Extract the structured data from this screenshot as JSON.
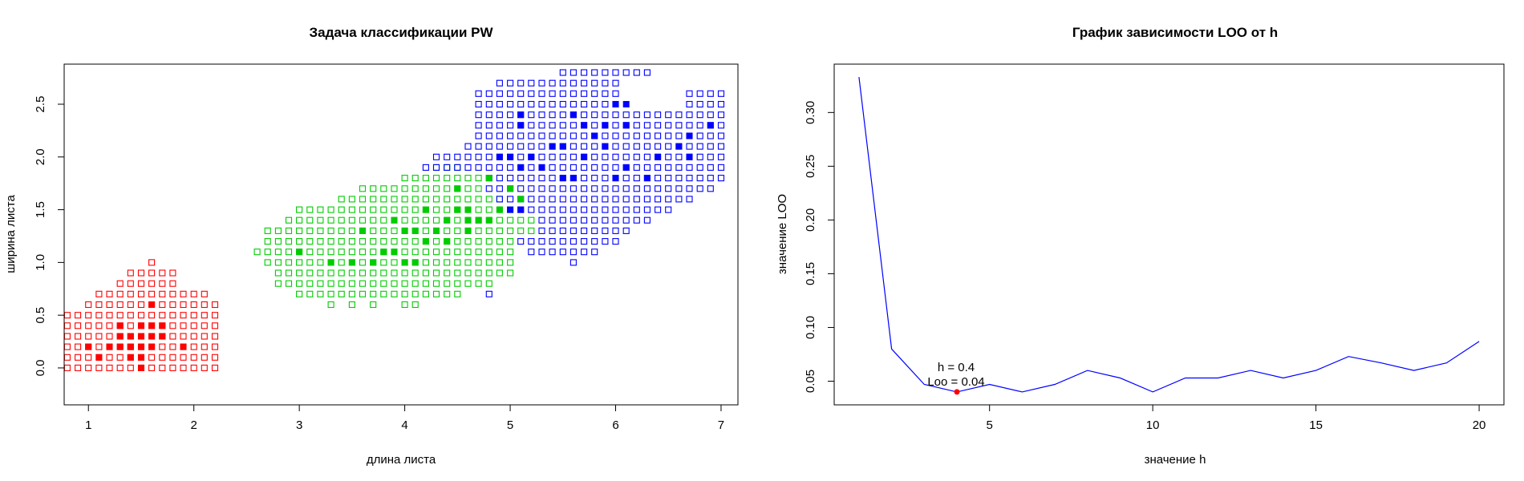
{
  "chart_data": [
    {
      "type": "scatter",
      "title": "Задача классификации PW",
      "xlabel": "длина листа",
      "ylabel": "ширина листа",
      "xlim": [
        0.77,
        7.16
      ],
      "ylim": [
        -0.35,
        2.88
      ],
      "x_ticks": [
        "1",
        "2",
        "3",
        "4",
        "5",
        "6",
        "7"
      ],
      "y_ticks": [
        "0.0",
        "0.5",
        "1.0",
        "1.5",
        "2.0",
        "2.5"
      ],
      "grid": false,
      "legend": "none",
      "marker": "open-square",
      "classes": [
        {
          "color": "#ff0000"
        },
        {
          "color": "#00cc00"
        },
        {
          "color": "#0000ff"
        }
      ],
      "grid_step": 0.1,
      "classified_regions": [
        {
          "class": 0,
          "rows": [
            {
              "y": 0.0,
              "x": [
                0.8,
                2.2
              ]
            },
            {
              "y": 0.1,
              "x": [
                0.8,
                2.2
              ]
            },
            {
              "y": 0.2,
              "x": [
                0.8,
                2.2
              ]
            },
            {
              "y": 0.3,
              "x": [
                0.8,
                2.2
              ]
            },
            {
              "y": 0.4,
              "x": [
                0.8,
                2.2
              ]
            },
            {
              "y": 0.5,
              "x": [
                0.8,
                2.2
              ]
            },
            {
              "y": 0.6,
              "x": [
                1.0,
                2.2
              ]
            },
            {
              "y": 0.7,
              "x": [
                1.1,
                2.1
              ]
            },
            {
              "y": 0.8,
              "x": [
                1.3,
                1.8
              ]
            },
            {
              "y": 0.9,
              "x": [
                1.4,
                1.8
              ]
            },
            {
              "y": 1.0,
              "x": [
                1.6,
                1.6
              ]
            }
          ]
        },
        {
          "class": 1,
          "rows": [
            {
              "y": 0.6,
              "x": [
                3.3,
                3.3
              ]
            },
            {
              "y": 0.6,
              "x": [
                3.5,
                3.5
              ]
            },
            {
              "y": 0.6,
              "x": [
                3.7,
                3.7
              ]
            },
            {
              "y": 0.6,
              "x": [
                4.0,
                4.1
              ]
            },
            {
              "y": 0.7,
              "x": [
                3.0,
                4.5
              ]
            },
            {
              "y": 0.8,
              "x": [
                2.8,
                4.8
              ]
            },
            {
              "y": 0.9,
              "x": [
                2.8,
                5.0
              ]
            },
            {
              "y": 1.0,
              "x": [
                2.7,
                5.0
              ]
            },
            {
              "y": 1.1,
              "x": [
                2.6,
                5.0
              ]
            },
            {
              "y": 1.2,
              "x": [
                2.7,
                5.0
              ]
            },
            {
              "y": 1.3,
              "x": [
                2.7,
                5.2
              ]
            },
            {
              "y": 1.4,
              "x": [
                2.9,
                5.2
              ]
            },
            {
              "y": 1.5,
              "x": [
                3.0,
                5.0
              ]
            },
            {
              "y": 1.6,
              "x": [
                3.4,
                4.9
              ]
            },
            {
              "y": 1.7,
              "x": [
                3.6,
                4.7
              ]
            },
            {
              "y": 1.8,
              "x": [
                4.0,
                4.7
              ]
            },
            {
              "y": 1.9,
              "x": [
                4.3,
                4.5
              ]
            }
          ]
        },
        {
          "class": 2,
          "rows": [
            {
              "y": 0.7,
              "x": [
                4.8,
                4.8
              ]
            },
            {
              "y": 1.0,
              "x": [
                5.6,
                5.6
              ]
            },
            {
              "y": 1.1,
              "x": [
                5.2,
                5.8
              ]
            },
            {
              "y": 1.2,
              "x": [
                5.1,
                6.0
              ]
            },
            {
              "y": 1.3,
              "x": [
                5.3,
                6.1
              ]
            },
            {
              "y": 1.4,
              "x": [
                5.3,
                6.3
              ]
            },
            {
              "y": 1.5,
              "x": [
                5.1,
                6.5
              ]
            },
            {
              "y": 1.6,
              "x": [
                4.9,
                6.7
              ]
            },
            {
              "y": 1.7,
              "x": [
                4.8,
                6.9
              ]
            },
            {
              "y": 1.8,
              "x": [
                4.8,
                7.0
              ]
            },
            {
              "y": 1.9,
              "x": [
                4.2,
                7.0
              ]
            },
            {
              "y": 2.0,
              "x": [
                4.3,
                7.0
              ]
            },
            {
              "y": 2.1,
              "x": [
                4.6,
                7.0
              ]
            },
            {
              "y": 2.2,
              "x": [
                4.7,
                7.0
              ]
            },
            {
              "y": 2.3,
              "x": [
                4.7,
                7.0
              ]
            },
            {
              "y": 2.4,
              "x": [
                4.7,
                7.0
              ]
            },
            {
              "y": 2.5,
              "x": [
                4.7,
                6.0
              ]
            },
            {
              "y": 2.5,
              "x": [
                6.7,
                7.0
              ]
            },
            {
              "y": 2.6,
              "x": [
                4.7,
                6.0
              ]
            },
            {
              "y": 2.6,
              "x": [
                6.7,
                7.0
              ]
            },
            {
              "y": 2.7,
              "x": [
                4.9,
                6.0
              ]
            },
            {
              "y": 2.8,
              "x": [
                5.5,
                6.3
              ]
            }
          ]
        }
      ],
      "training_points": [
        {
          "class": 0,
          "points": [
            [
              1.4,
              0.2
            ],
            [
              1.3,
              0.2
            ],
            [
              1.5,
              0.2
            ],
            [
              1.4,
              0.2
            ],
            [
              1.7,
              0.4
            ],
            [
              1.4,
              0.3
            ],
            [
              1.5,
              0.2
            ],
            [
              1.5,
              0.1
            ],
            [
              1.6,
              0.2
            ],
            [
              1.1,
              0.1
            ],
            [
              1.2,
              0.2
            ],
            [
              1.3,
              0.4
            ],
            [
              1.7,
              0.3
            ],
            [
              1.5,
              0.3
            ],
            [
              1.0,
              0.2
            ],
            [
              1.9,
              0.2
            ],
            [
              1.6,
              0.4
            ],
            [
              1.3,
              0.3
            ],
            [
              1.5,
              0.4
            ],
            [
              1.6,
              0.6
            ],
            [
              1.4,
              0.1
            ],
            [
              1.6,
              0.3
            ],
            [
              1.5,
              0.0
            ]
          ]
        },
        {
          "class": 1,
          "points": [
            [
              4.7,
              1.4
            ],
            [
              4.5,
              1.5
            ],
            [
              4.9,
              1.5
            ],
            [
              4.0,
              1.3
            ],
            [
              4.6,
              1.5
            ],
            [
              3.3,
              1.0
            ],
            [
              4.6,
              1.3
            ],
            [
              3.9,
              1.4
            ],
            [
              3.5,
              1.0
            ],
            [
              4.2,
              1.5
            ],
            [
              4.0,
              1.0
            ],
            [
              4.7,
              1.4
            ],
            [
              3.6,
              1.3
            ],
            [
              4.4,
              1.4
            ],
            [
              4.1,
              1.0
            ],
            [
              3.9,
              1.1
            ],
            [
              4.8,
              1.8
            ],
            [
              4.3,
              1.3
            ],
            [
              5.0,
              1.7
            ],
            [
              3.8,
              1.1
            ],
            [
              3.7,
              1.0
            ],
            [
              4.1,
              1.3
            ],
            [
              4.4,
              1.2
            ],
            [
              4.6,
              1.4
            ],
            [
              3.0,
              1.1
            ],
            [
              4.5,
              1.7
            ],
            [
              5.1,
              1.6
            ],
            [
              4.2,
              1.2
            ],
            [
              4.8,
              1.4
            ]
          ]
        },
        {
          "class": 2,
          "points": [
            [
              6.0,
              2.5
            ],
            [
              5.1,
              1.9
            ],
            [
              5.9,
              2.1
            ],
            [
              5.6,
              1.8
            ],
            [
              5.8,
              2.2
            ],
            [
              6.6,
              2.1
            ],
            [
              6.3,
              1.8
            ],
            [
              6.1,
              2.5
            ],
            [
              5.3,
              1.9
            ],
            [
              5.5,
              2.1
            ],
            [
              5.0,
              2.0
            ],
            [
              5.1,
              2.4
            ],
            [
              6.7,
              2.2
            ],
            [
              6.9,
              2.3
            ],
            [
              5.7,
              2.3
            ],
            [
              4.9,
              2.0
            ],
            [
              6.7,
              2.0
            ],
            [
              6.0,
              1.8
            ],
            [
              5.4,
              2.1
            ],
            [
              5.6,
              2.4
            ],
            [
              5.1,
              2.3
            ],
            [
              5.9,
              2.3
            ],
            [
              5.2,
              2.0
            ],
            [
              6.4,
              2.0
            ],
            [
              6.1,
              2.3
            ],
            [
              5.5,
              1.8
            ],
            [
              6.1,
              1.9
            ],
            [
              5.7,
              2.0
            ],
            [
              5.0,
              1.5
            ],
            [
              5.1,
              1.5
            ]
          ]
        }
      ]
    },
    {
      "type": "line",
      "title": "График зависимости LOO от h",
      "xlabel": "значение h",
      "ylabel": "значение LOO",
      "xlim": [
        0.24,
        20.76
      ],
      "ylim": [
        0.028,
        0.345
      ],
      "x_ticks": [
        "5",
        "10",
        "15",
        "20"
      ],
      "y_ticks": [
        "0.05",
        "0.10",
        "0.15",
        "0.20",
        "0.25",
        "0.30"
      ],
      "grid": false,
      "legend": "none",
      "line_color": "#0000ff",
      "marker_color": "#ff0000",
      "x": [
        1,
        2,
        3,
        4,
        5,
        6,
        7,
        8,
        9,
        10,
        11,
        12,
        13,
        14,
        15,
        16,
        17,
        18,
        19,
        20
      ],
      "y": [
        0.333,
        0.08,
        0.047,
        0.04,
        0.047,
        0.04,
        0.047,
        0.06,
        0.053,
        0.04,
        0.053,
        0.053,
        0.06,
        0.053,
        0.06,
        0.073,
        0.067,
        0.06,
        0.067,
        0.087
      ],
      "annotation": {
        "x": 4,
        "y": 0.04,
        "line1": "h =  0.4",
        "line2": "Loo = 0.04"
      }
    }
  ]
}
